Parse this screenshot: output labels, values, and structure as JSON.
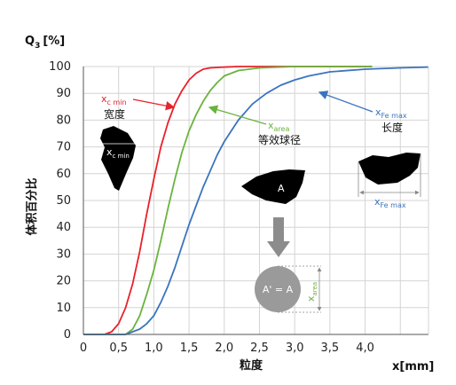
{
  "chart_data": {
    "type": "line",
    "ylabel_main": "Q",
    "ylabel_sub": "3",
    "ylabel_unit": "[%]",
    "ylabel_cn": "体积百分比",
    "xlabel_cn": "粒度",
    "xlabel_unit": "x[mm]",
    "xlim": [
      0,
      4.9
    ],
    "ylim": [
      0,
      100
    ],
    "x_ticks": [
      "0",
      "0,5",
      "1,0",
      "1,5",
      "2,0",
      "2,5",
      "3,0",
      "3,5",
      "4,0"
    ],
    "x_tick_values": [
      0,
      0.5,
      1.0,
      1.5,
      2.0,
      2.5,
      3.0,
      3.5,
      4.0
    ],
    "y_ticks": [
      "0",
      "10",
      "20",
      "30",
      "40",
      "50",
      "60",
      "70",
      "80",
      "90",
      "100"
    ],
    "y_tick_values": [
      0,
      10,
      20,
      30,
      40,
      50,
      60,
      70,
      80,
      90,
      100
    ],
    "grid": true,
    "series": [
      {
        "color": "#e8212b",
        "x": [
          0,
          0.3,
          0.4,
          0.5,
          0.6,
          0.7,
          0.8,
          0.9,
          1.0,
          1.1,
          1.2,
          1.3,
          1.4,
          1.5,
          1.6,
          1.7,
          1.8,
          2.0,
          2.2,
          2.5,
          3.0,
          3.5,
          4.0,
          4.1
        ],
        "y": [
          0,
          0,
          1,
          4,
          10,
          19,
          31,
          45,
          58,
          70,
          79,
          86,
          91,
          95,
          97.5,
          99,
          99.5,
          99.8,
          100,
          100,
          100,
          100,
          100,
          100
        ]
      },
      {
        "color": "#6ab33e",
        "x": [
          0,
          0.6,
          0.7,
          0.8,
          0.9,
          1.0,
          1.1,
          1.2,
          1.3,
          1.4,
          1.5,
          1.6,
          1.7,
          1.8,
          1.9,
          2.0,
          2.2,
          2.5,
          3.0,
          3.5,
          4.0,
          4.1
        ],
        "y": [
          0,
          0,
          2,
          7,
          15,
          24,
          35,
          47,
          58,
          68,
          76,
          82,
          87,
          91,
          94,
          96.5,
          98.5,
          99.5,
          100,
          100,
          100,
          100
        ]
      },
      {
        "color": "#3a74bf",
        "x": [
          0,
          0.6,
          0.8,
          0.9,
          1.0,
          1.1,
          1.2,
          1.3,
          1.4,
          1.5,
          1.6,
          1.7,
          1.8,
          1.9,
          2.0,
          2.1,
          2.2,
          2.3,
          2.4,
          2.5,
          2.6,
          2.8,
          3.0,
          3.2,
          3.5,
          4.0,
          4.5,
          4.9
        ],
        "y": [
          0,
          0,
          2,
          4,
          7,
          12,
          18,
          25,
          33,
          41,
          48,
          55,
          61,
          67,
          72,
          76,
          80,
          83,
          86,
          88,
          90,
          93,
          95,
          96.5,
          98,
          99,
          99.5,
          99.8
        ]
      }
    ],
    "annotations": {
      "xcmin_label": "x",
      "xcmin_sub": "c min",
      "xcmin_cn": "宽度",
      "xarea_label": "x",
      "xarea_sub": "area",
      "xarea_cn": "等效球径",
      "xfemax_label": "x",
      "xfemax_sub": "Fe max",
      "xfemax_cn": "长度",
      "shape_a": "A",
      "circle_text": "A' = A",
      "circle_dim_label": "x",
      "circle_dim_sub": "area",
      "particle1_label": "x",
      "particle1_sub": "c min",
      "particle3_label": "x",
      "particle3_sub": "Fe max"
    },
    "colors": {
      "red": "#e8212b",
      "green": "#6ab33e",
      "blue": "#3a74bf",
      "particle": "#000000",
      "circle": "#9a9a9a",
      "arrow_gray": "#8c8c8c",
      "grid": "#d4d4d4"
    }
  }
}
